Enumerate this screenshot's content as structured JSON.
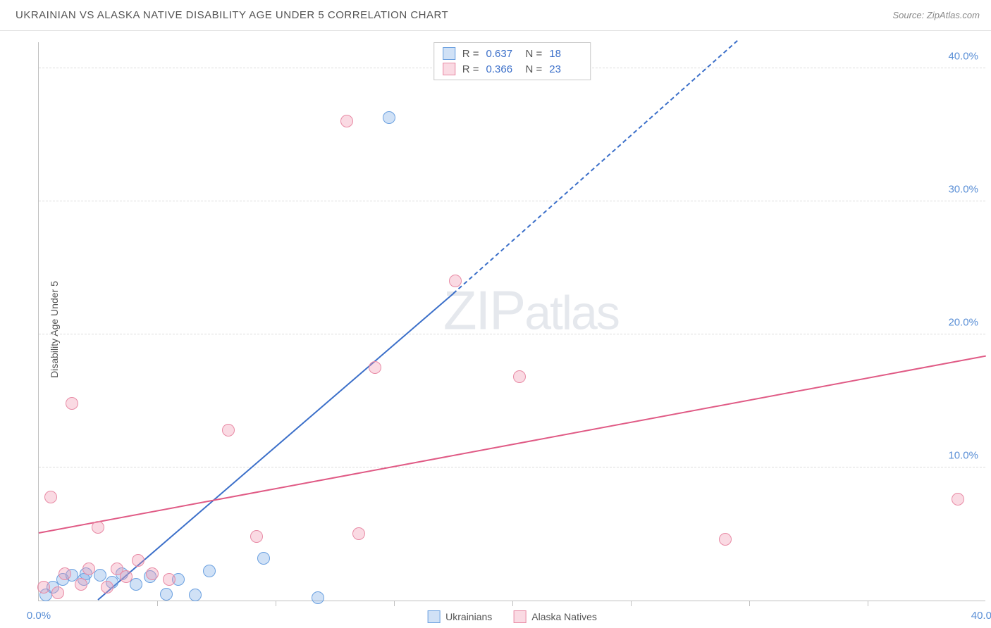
{
  "header": {
    "title": "UKRAINIAN VS ALASKA NATIVE DISABILITY AGE UNDER 5 CORRELATION CHART",
    "source_prefix": "Source: ",
    "source_name": "ZipAtlas.com"
  },
  "watermark": {
    "part1": "ZIP",
    "part2": "atlas"
  },
  "chart": {
    "type": "scatter",
    "ylabel": "Disability Age Under 5",
    "xlim": [
      0,
      40
    ],
    "ylim": [
      0,
      42
    ],
    "xticks": [
      0,
      40
    ],
    "xtick_labels": [
      "0.0%",
      "40.0%"
    ],
    "xtick_minor": [
      5,
      10,
      15,
      20,
      25,
      30,
      35
    ],
    "yticks": [
      10,
      20,
      30,
      40
    ],
    "ytick_labels": [
      "10.0%",
      "20.0%",
      "30.0%",
      "40.0%"
    ],
    "grid_color": "#dcdcdc",
    "background_color": "#ffffff",
    "axis_color": "#c0c0c0",
    "label_fontsize": 14,
    "tick_fontsize": 15,
    "tick_color": "#5a8fd6",
    "marker_radius": 9,
    "marker_stroke_width": 1.5,
    "series": [
      {
        "name": "Ukrainians",
        "fill_color": "rgba(120,170,230,0.35)",
        "stroke_color": "#6aa0e0",
        "trend_color": "#3b6fc9",
        "trend_line": {
          "x1": 2.5,
          "y1": 0,
          "x2": 17.5,
          "y2": 23,
          "dash_to_x": 29.5,
          "dash_to_y": 42
        },
        "R": "0.637",
        "N": "18",
        "points": [
          [
            0.3,
            0.4
          ],
          [
            0.6,
            1.0
          ],
          [
            1.0,
            1.6
          ],
          [
            1.4,
            1.9
          ],
          [
            1.9,
            1.6
          ],
          [
            2.0,
            2.0
          ],
          [
            2.6,
            1.9
          ],
          [
            3.1,
            1.4
          ],
          [
            3.5,
            2.0
          ],
          [
            4.1,
            1.2
          ],
          [
            4.7,
            1.8
          ],
          [
            5.4,
            0.5
          ],
          [
            5.9,
            1.6
          ],
          [
            6.6,
            0.4
          ],
          [
            7.2,
            2.2
          ],
          [
            9.5,
            3.2
          ],
          [
            11.8,
            0.2
          ],
          [
            14.8,
            36.3
          ]
        ]
      },
      {
        "name": "Alaska Natives",
        "fill_color": "rgba(240,150,175,0.35)",
        "stroke_color": "#e88aa5",
        "trend_color": "#e05a85",
        "trend_line": {
          "x1": 0,
          "y1": 5.0,
          "x2": 40,
          "y2": 18.3
        },
        "R": "0.366",
        "N": "23",
        "points": [
          [
            0.2,
            1.0
          ],
          [
            0.5,
            7.8
          ],
          [
            0.8,
            0.6
          ],
          [
            1.1,
            2.0
          ],
          [
            1.4,
            14.8
          ],
          [
            1.8,
            1.2
          ],
          [
            2.1,
            2.4
          ],
          [
            2.5,
            5.5
          ],
          [
            2.9,
            1.0
          ],
          [
            3.3,
            2.4
          ],
          [
            3.7,
            1.8
          ],
          [
            4.2,
            3.0
          ],
          [
            4.8,
            2.0
          ],
          [
            5.5,
            1.6
          ],
          [
            8.0,
            12.8
          ],
          [
            9.2,
            4.8
          ],
          [
            13.0,
            36.0
          ],
          [
            14.2,
            17.5
          ],
          [
            17.6,
            24.0
          ],
          [
            20.3,
            16.8
          ],
          [
            29.0,
            4.6
          ],
          [
            38.8,
            7.6
          ],
          [
            13.5,
            5.0
          ]
        ]
      }
    ],
    "stats_box": {
      "rows": [
        {
          "color_idx": 0,
          "R_label": "R =",
          "R": "0.637",
          "N_label": "N =",
          "N": "18"
        },
        {
          "color_idx": 1,
          "R_label": "R =",
          "R": "0.366",
          "N_label": "N =",
          "N": "23"
        }
      ]
    },
    "bottom_legend": [
      {
        "color_idx": 0,
        "label": "Ukrainians"
      },
      {
        "color_idx": 1,
        "label": "Alaska Natives"
      }
    ]
  }
}
